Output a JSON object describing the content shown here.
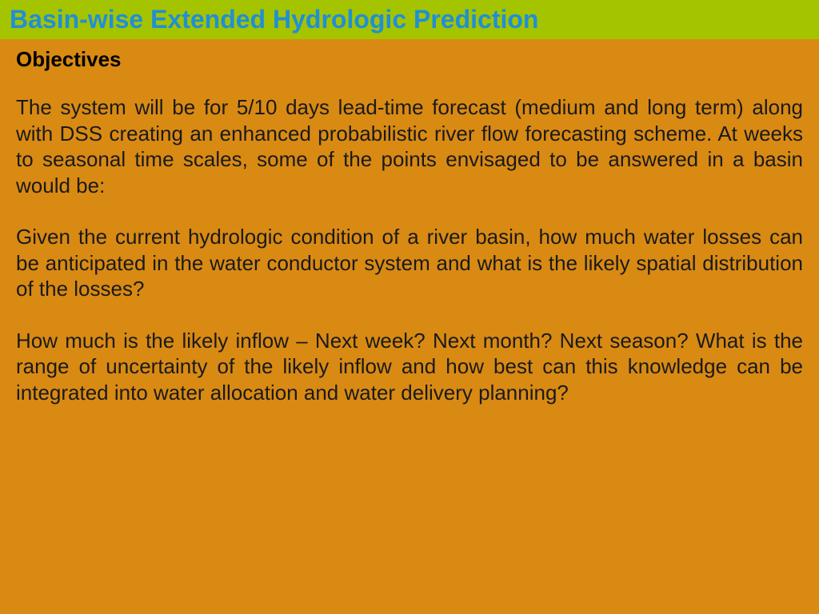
{
  "colors": {
    "header_bg": "#a4c400",
    "title_color": "#1f8fd6",
    "body_bg": "#d98a13",
    "subheading_color": "#000000",
    "body_text_color": "#1a1a1a"
  },
  "header": {
    "title": "Basin-wise Extended Hydrologic Prediction"
  },
  "content": {
    "subheading": "Objectives",
    "paragraphs": [
      "The system will be for 5/10 days lead-time forecast (medium and long term) along with DSS creating an enhanced probabilistic river flow forecasting scheme. At weeks to seasonal time scales, some of the points envisaged to be answered in a basin would be:",
      "Given the current hydrologic condition of a river basin, how much water losses can be anticipated in the water conductor system and what is the likely spatial distribution of the losses?",
      "How much is the likely inflow – Next week? Next month? Next season? What is the range of uncertainty of the likely inflow and how best can this knowledge can be integrated into water allocation and water delivery planning?"
    ]
  }
}
